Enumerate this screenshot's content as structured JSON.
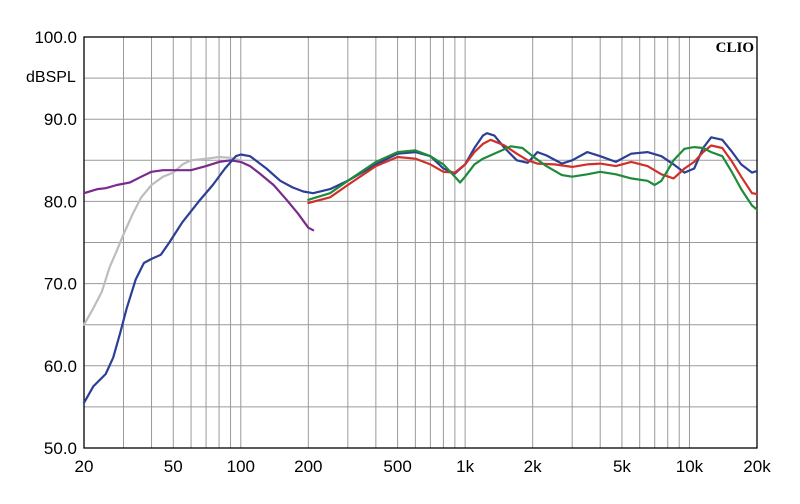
{
  "chart_data": {
    "type": "line",
    "xscale": "log",
    "xlim": [
      20,
      20000
    ],
    "ylim": [
      50,
      100
    ],
    "grid": true,
    "ylabel": "dBSPL",
    "brand": "CLIO",
    "x_ticks": [
      {
        "value": 20,
        "label": "20"
      },
      {
        "value": 50,
        "label": "50"
      },
      {
        "value": 100,
        "label": "100"
      },
      {
        "value": 200,
        "label": "200"
      },
      {
        "value": 500,
        "label": "500"
      },
      {
        "value": 1000,
        "label": "1k"
      },
      {
        "value": 2000,
        "label": "2k"
      },
      {
        "value": 5000,
        "label": "5k"
      },
      {
        "value": 10000,
        "label": "10k"
      },
      {
        "value": 20000,
        "label": "20k"
      }
    ],
    "y_ticks": [
      {
        "value": 100,
        "label": "100.0"
      },
      {
        "value": 90,
        "label": "90.0"
      },
      {
        "value": 80,
        "label": "80.0"
      },
      {
        "value": 70,
        "label": "70.0"
      },
      {
        "value": 60,
        "label": "60.0"
      },
      {
        "value": 50,
        "label": "50.0"
      }
    ],
    "series": [
      {
        "color": "#bdbdbd",
        "points": [
          [
            20,
            65.0
          ],
          [
            22,
            67.0
          ],
          [
            24,
            69.0
          ],
          [
            26,
            72.0
          ],
          [
            28,
            74.0
          ],
          [
            30,
            76.0
          ],
          [
            33,
            78.5
          ],
          [
            36,
            80.5
          ],
          [
            40,
            82.0
          ],
          [
            45,
            83.0
          ],
          [
            50,
            83.5
          ],
          [
            55,
            84.5
          ],
          [
            60,
            85.0
          ],
          [
            70,
            85.2
          ],
          [
            80,
            85.4
          ],
          [
            90,
            85.3
          ],
          [
            100,
            85.0
          ]
        ]
      },
      {
        "color": "#7a2a8c",
        "points": [
          [
            20,
            81.0
          ],
          [
            23,
            81.5
          ],
          [
            25,
            81.6
          ],
          [
            28,
            82.0
          ],
          [
            32,
            82.3
          ],
          [
            36,
            83.0
          ],
          [
            40,
            83.6
          ],
          [
            45,
            83.8
          ],
          [
            50,
            83.8
          ],
          [
            60,
            83.8
          ],
          [
            70,
            84.3
          ],
          [
            80,
            84.8
          ],
          [
            90,
            85.0
          ],
          [
            100,
            84.8
          ],
          [
            110,
            84.3
          ],
          [
            120,
            83.5
          ],
          [
            140,
            82.0
          ],
          [
            160,
            80.2
          ],
          [
            180,
            78.5
          ],
          [
            200,
            76.8
          ],
          [
            210,
            76.5
          ]
        ]
      },
      {
        "color": "#2b3f95",
        "points": [
          [
            20,
            55.5
          ],
          [
            22,
            57.5
          ],
          [
            25,
            59.0
          ],
          [
            27,
            61.0
          ],
          [
            29,
            64.0
          ],
          [
            31,
            67.0
          ],
          [
            34,
            70.5
          ],
          [
            37,
            72.5
          ],
          [
            40,
            73.0
          ],
          [
            44,
            73.5
          ],
          [
            48,
            75.0
          ],
          [
            55,
            77.5
          ],
          [
            65,
            80.0
          ],
          [
            75,
            82.0
          ],
          [
            85,
            84.0
          ],
          [
            95,
            85.5
          ],
          [
            100,
            85.7
          ],
          [
            110,
            85.5
          ],
          [
            130,
            84.0
          ],
          [
            150,
            82.5
          ],
          [
            170,
            81.7
          ],
          [
            190,
            81.2
          ],
          [
            210,
            81.0
          ],
          [
            250,
            81.5
          ],
          [
            300,
            82.5
          ],
          [
            400,
            84.5
          ],
          [
            500,
            85.8
          ],
          [
            600,
            86.0
          ],
          [
            700,
            85.5
          ],
          [
            800,
            84.0
          ],
          [
            900,
            83.4
          ],
          [
            1000,
            84.5
          ],
          [
            1100,
            86.5
          ],
          [
            1200,
            88.0
          ],
          [
            1250,
            88.3
          ],
          [
            1350,
            88.0
          ],
          [
            1500,
            86.5
          ],
          [
            1700,
            85.0
          ],
          [
            1900,
            84.7
          ],
          [
            2100,
            86.0
          ],
          [
            2300,
            85.6
          ],
          [
            2700,
            84.6
          ],
          [
            3000,
            85.0
          ],
          [
            3500,
            86.0
          ],
          [
            4000,
            85.5
          ],
          [
            4700,
            84.8
          ],
          [
            5500,
            85.8
          ],
          [
            6500,
            86.0
          ],
          [
            7500,
            85.5
          ],
          [
            8500,
            84.5
          ],
          [
            9500,
            83.5
          ],
          [
            10500,
            84.0
          ],
          [
            11500,
            86.5
          ],
          [
            12500,
            87.8
          ],
          [
            14000,
            87.5
          ],
          [
            15500,
            86.0
          ],
          [
            17000,
            84.5
          ],
          [
            19000,
            83.5
          ],
          [
            20000,
            83.7
          ]
        ]
      },
      {
        "color": "#d0302a",
        "points": [
          [
            200,
            79.8
          ],
          [
            250,
            80.5
          ],
          [
            300,
            82.0
          ],
          [
            400,
            84.3
          ],
          [
            500,
            85.4
          ],
          [
            600,
            85.2
          ],
          [
            700,
            84.5
          ],
          [
            800,
            83.6
          ],
          [
            900,
            83.5
          ],
          [
            1000,
            84.5
          ],
          [
            1100,
            86.0
          ],
          [
            1200,
            87.0
          ],
          [
            1300,
            87.5
          ],
          [
            1500,
            86.8
          ],
          [
            1700,
            85.8
          ],
          [
            1900,
            85.0
          ],
          [
            2100,
            84.6
          ],
          [
            2500,
            84.5
          ],
          [
            3000,
            84.2
          ],
          [
            3500,
            84.5
          ],
          [
            4000,
            84.6
          ],
          [
            4700,
            84.3
          ],
          [
            5500,
            84.8
          ],
          [
            6500,
            84.3
          ],
          [
            7500,
            83.3
          ],
          [
            8500,
            82.8
          ],
          [
            9500,
            84.0
          ],
          [
            10500,
            84.8
          ],
          [
            11500,
            86.0
          ],
          [
            12500,
            86.8
          ],
          [
            14000,
            86.5
          ],
          [
            15500,
            84.8
          ],
          [
            17000,
            83.0
          ],
          [
            19000,
            81.0
          ],
          [
            20000,
            80.9
          ]
        ]
      },
      {
        "color": "#1f8a3a",
        "points": [
          [
            200,
            80.2
          ],
          [
            250,
            81.0
          ],
          [
            300,
            82.5
          ],
          [
            400,
            84.8
          ],
          [
            500,
            86.0
          ],
          [
            600,
            86.2
          ],
          [
            700,
            85.5
          ],
          [
            800,
            84.5
          ],
          [
            900,
            83.0
          ],
          [
            950,
            82.3
          ],
          [
            1000,
            83.0
          ],
          [
            1100,
            84.5
          ],
          [
            1200,
            85.2
          ],
          [
            1400,
            86.0
          ],
          [
            1600,
            86.7
          ],
          [
            1800,
            86.5
          ],
          [
            2000,
            85.5
          ],
          [
            2300,
            84.3
          ],
          [
            2700,
            83.2
          ],
          [
            3000,
            83.0
          ],
          [
            3500,
            83.3
          ],
          [
            4000,
            83.6
          ],
          [
            4700,
            83.3
          ],
          [
            5500,
            82.8
          ],
          [
            6500,
            82.5
          ],
          [
            7000,
            82.0
          ],
          [
            7500,
            82.5
          ],
          [
            8500,
            85.0
          ],
          [
            9500,
            86.4
          ],
          [
            10500,
            86.6
          ],
          [
            11500,
            86.5
          ],
          [
            12500,
            86.0
          ],
          [
            14000,
            85.5
          ],
          [
            15500,
            83.5
          ],
          [
            17000,
            81.5
          ],
          [
            19000,
            79.5
          ],
          [
            20000,
            79.0
          ]
        ]
      }
    ]
  }
}
